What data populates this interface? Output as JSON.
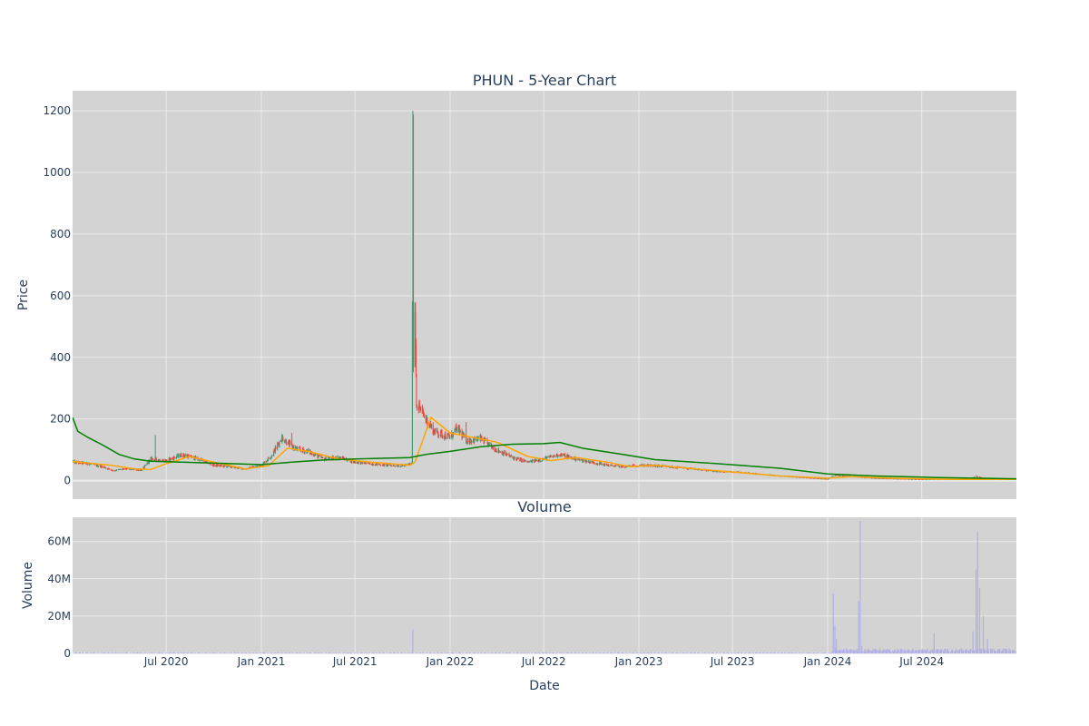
{
  "chart_data": [
    {
      "type": "candlestick",
      "title": "PHUN - 5-Year Chart",
      "ylabel": "Price",
      "xlabel": "",
      "x_range": [
        "2020-01-02",
        "2024-12-31"
      ],
      "ylim": [
        -60,
        1265
      ],
      "y_ticks": [
        0,
        200,
        400,
        600,
        800,
        1000,
        1200
      ],
      "x_ticks": [
        {
          "date": "2020-07-01",
          "label": "Jul 2020"
        },
        {
          "date": "2021-01-01",
          "label": "Jan 2021"
        },
        {
          "date": "2021-07-01",
          "label": "Jul 2021"
        },
        {
          "date": "2022-01-01",
          "label": "Jan 2022"
        },
        {
          "date": "2022-07-01",
          "label": "Jul 2022"
        },
        {
          "date": "2023-01-01",
          "label": "Jan 2023"
        },
        {
          "date": "2023-07-01",
          "label": "Jul 2023"
        },
        {
          "date": "2024-01-01",
          "label": "Jan 2024"
        },
        {
          "date": "2024-07-01",
          "label": "Jul 2024"
        }
      ],
      "grid": true,
      "colors": {
        "up": "#3d9970",
        "down": "#ff4136",
        "ma_short": "#ffa500",
        "ma_long": "#008000",
        "plot_bg": "#d3d3d3",
        "grid": "#ebebeb"
      },
      "price_path": [
        [
          "2020-01-02",
          60
        ],
        [
          "2020-02-01",
          55
        ],
        [
          "2020-03-01",
          45
        ],
        [
          "2020-03-20",
          33
        ],
        [
          "2020-04-15",
          38
        ],
        [
          "2020-05-15",
          34
        ],
        [
          "2020-06-01",
          70
        ],
        [
          "2020-07-01",
          65
        ],
        [
          "2020-08-01",
          84
        ],
        [
          "2020-09-01",
          70
        ],
        [
          "2020-10-01",
          50
        ],
        [
          "2020-11-01",
          45
        ],
        [
          "2020-12-01",
          38
        ],
        [
          "2021-01-01",
          50
        ],
        [
          "2021-01-20",
          80
        ],
        [
          "2021-02-10",
          140
        ],
        [
          "2021-03-01",
          110
        ],
        [
          "2021-03-15",
          100
        ],
        [
          "2021-04-01",
          95
        ],
        [
          "2021-05-01",
          70
        ],
        [
          "2021-06-01",
          75
        ],
        [
          "2021-07-01",
          60
        ],
        [
          "2021-08-01",
          55
        ],
        [
          "2021-09-01",
          50
        ],
        [
          "2021-10-01",
          48
        ],
        [
          "2021-10-19",
          55
        ],
        [
          "2021-10-21",
          1100
        ],
        [
          "2021-10-22",
          400
        ],
        [
          "2021-10-25",
          560
        ],
        [
          "2021-10-28",
          250
        ],
        [
          "2021-11-15",
          200
        ],
        [
          "2021-12-01",
          160
        ],
        [
          "2022-01-01",
          140
        ],
        [
          "2022-01-15",
          170
        ],
        [
          "2022-02-01",
          130
        ],
        [
          "2022-03-01",
          135
        ],
        [
          "2022-04-01",
          100
        ],
        [
          "2022-05-01",
          75
        ],
        [
          "2022-06-01",
          60
        ],
        [
          "2022-07-01",
          70
        ],
        [
          "2022-08-01",
          85
        ],
        [
          "2022-09-01",
          70
        ],
        [
          "2022-10-01",
          60
        ],
        [
          "2022-11-01",
          50
        ],
        [
          "2022-12-01",
          45
        ],
        [
          "2023-01-01",
          50
        ],
        [
          "2023-02-01",
          48
        ],
        [
          "2023-04-01",
          40
        ],
        [
          "2023-06-01",
          30
        ],
        [
          "2023-08-01",
          25
        ],
        [
          "2023-10-01",
          15
        ],
        [
          "2024-01-01",
          5
        ],
        [
          "2024-01-15",
          18
        ],
        [
          "2024-02-15",
          14
        ],
        [
          "2024-04-01",
          8
        ],
        [
          "2024-07-01",
          4
        ],
        [
          "2024-10-01",
          6
        ],
        [
          "2024-10-15",
          15
        ],
        [
          "2024-11-01",
          5
        ],
        [
          "2024-12-31",
          4
        ]
      ],
      "spikes": [
        {
          "date": "2020-06-10",
          "high": 148
        },
        {
          "date": "2021-03-01",
          "high": 155
        },
        {
          "date": "2021-10-21",
          "high": 1200
        },
        {
          "date": "2021-10-22",
          "high": 600
        },
        {
          "date": "2022-02-01",
          "high": 190
        }
      ],
      "ma_short": [
        [
          "2020-01-02",
          62
        ],
        [
          "2020-03-15",
          50
        ],
        [
          "2020-05-01",
          38
        ],
        [
          "2020-06-01",
          36
        ],
        [
          "2020-07-01",
          55
        ],
        [
          "2020-08-15",
          78
        ],
        [
          "2020-10-01",
          60
        ],
        [
          "2020-12-01",
          38
        ],
        [
          "2021-01-15",
          48
        ],
        [
          "2021-02-20",
          105
        ],
        [
          "2021-04-01",
          95
        ],
        [
          "2021-06-01",
          70
        ],
        [
          "2021-08-01",
          60
        ],
        [
          "2021-10-15",
          50
        ],
        [
          "2021-10-25",
          60
        ],
        [
          "2021-11-25",
          205
        ],
        [
          "2022-01-01",
          155
        ],
        [
          "2022-02-15",
          140
        ],
        [
          "2022-04-01",
          125
        ],
        [
          "2022-06-01",
          78
        ],
        [
          "2022-07-15",
          65
        ],
        [
          "2022-09-01",
          75
        ],
        [
          "2022-11-01",
          60
        ],
        [
          "2022-12-15",
          45
        ],
        [
          "2023-02-01",
          50
        ],
        [
          "2023-06-01",
          32
        ],
        [
          "2023-10-01",
          15
        ],
        [
          "2024-01-01",
          8
        ],
        [
          "2024-02-15",
          13
        ],
        [
          "2024-05-01",
          8
        ],
        [
          "2024-09-01",
          4
        ],
        [
          "2024-12-31",
          4
        ]
      ],
      "ma_long": [
        [
          "2020-01-02",
          205
        ],
        [
          "2020-01-12",
          160
        ],
        [
          "2020-02-01",
          140
        ],
        [
          "2020-03-01",
          115
        ],
        [
          "2020-04-01",
          85
        ],
        [
          "2020-05-01",
          70
        ],
        [
          "2020-06-01",
          63
        ],
        [
          "2020-08-01",
          60
        ],
        [
          "2020-11-01",
          55
        ],
        [
          "2021-01-01",
          52
        ],
        [
          "2021-03-01",
          60
        ],
        [
          "2021-05-01",
          67
        ],
        [
          "2021-07-01",
          70
        ],
        [
          "2021-10-15",
          75
        ],
        [
          "2021-11-15",
          85
        ],
        [
          "2022-01-01",
          95
        ],
        [
          "2022-03-01",
          110
        ],
        [
          "2022-05-01",
          118
        ],
        [
          "2022-07-01",
          120
        ],
        [
          "2022-08-01",
          124
        ],
        [
          "2022-09-15",
          105
        ],
        [
          "2022-12-01",
          85
        ],
        [
          "2023-02-01",
          68
        ],
        [
          "2023-06-01",
          55
        ],
        [
          "2023-10-01",
          40
        ],
        [
          "2024-01-01",
          22
        ],
        [
          "2024-04-01",
          15
        ],
        [
          "2024-08-01",
          10
        ],
        [
          "2024-12-31",
          6
        ]
      ]
    },
    {
      "type": "bar",
      "title": "Volume",
      "ylabel": "Volume",
      "xlabel": "Date",
      "ylim": [
        0,
        73
      ],
      "y_ticks": [
        {
          "value": 0,
          "label": "0"
        },
        {
          "value": 20,
          "label": "20M"
        },
        {
          "value": 40,
          "label": "40M"
        },
        {
          "value": 60,
          "label": "60M"
        }
      ],
      "unit": "M",
      "color": "#b0b0e8",
      "baseline": 0.3,
      "bursts": [
        {
          "date": "2021-10-21",
          "value": 13
        },
        {
          "date": "2024-01-12",
          "value": 32
        },
        {
          "date": "2024-01-15",
          "value": 15
        },
        {
          "date": "2024-01-18",
          "value": 8
        },
        {
          "date": "2024-03-01",
          "value": 28
        },
        {
          "date": "2024-03-04",
          "value": 71
        },
        {
          "date": "2024-03-07",
          "value": 4
        },
        {
          "date": "2024-07-25",
          "value": 11
        },
        {
          "date": "2024-10-08",
          "value": 12
        },
        {
          "date": "2024-10-14",
          "value": 45
        },
        {
          "date": "2024-10-17",
          "value": 65
        },
        {
          "date": "2024-10-21",
          "value": 35
        },
        {
          "date": "2024-10-28",
          "value": 20
        },
        {
          "date": "2024-11-05",
          "value": 8
        }
      ]
    }
  ]
}
